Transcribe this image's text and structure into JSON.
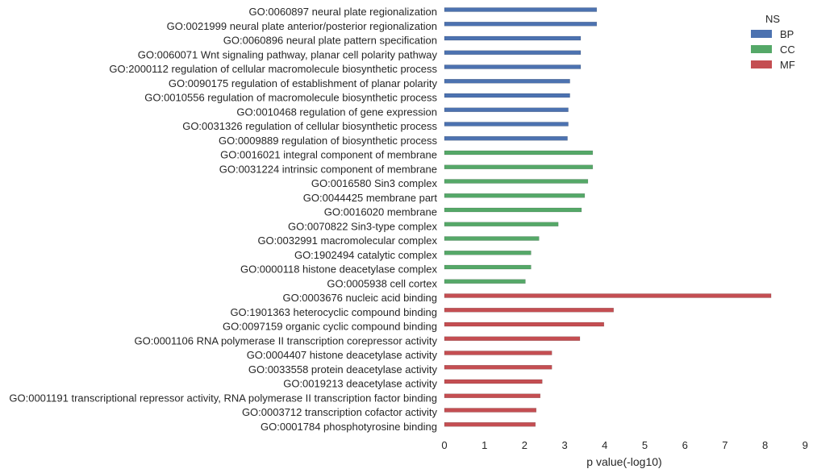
{
  "chart_data": {
    "type": "bar",
    "orientation": "horizontal",
    "title": "",
    "xlabel": "p value(-log10)",
    "ylabel": "",
    "xlim": [
      0,
      9
    ],
    "xticks": [
      0,
      1,
      2,
      3,
      4,
      5,
      6,
      7,
      8,
      9
    ],
    "grid": false,
    "legend": {
      "title": "NS",
      "placement": "top-right",
      "entries": [
        {
          "name": "BP",
          "color": "#4c72b0"
        },
        {
          "name": "CC",
          "color": "#55a868"
        },
        {
          "name": "MF",
          "color": "#c44e52"
        }
      ]
    },
    "categories": [
      {
        "label": "GO:0060897 neural plate regionalization",
        "group": "BP",
        "value": 3.8
      },
      {
        "label": "GO:0021999 neural plate anterior/posterior regionalization",
        "group": "BP",
        "value": 3.8
      },
      {
        "label": "GO:0060896 neural plate pattern specification",
        "group": "BP",
        "value": 3.4
      },
      {
        "label": "GO:0060071 Wnt signaling pathway, planar cell polarity pathway",
        "group": "BP",
        "value": 3.4
      },
      {
        "label": "GO:2000112 regulation of cellular macromolecule biosynthetic process",
        "group": "BP",
        "value": 3.4
      },
      {
        "label": "GO:0090175 regulation of establishment of planar polarity",
        "group": "BP",
        "value": 3.13
      },
      {
        "label": "GO:0010556 regulation of macromolecule biosynthetic process",
        "group": "BP",
        "value": 3.13
      },
      {
        "label": "GO:0010468 regulation of gene expression",
        "group": "BP",
        "value": 3.09
      },
      {
        "label": "GO:0031326 regulation of cellular biosynthetic process",
        "group": "BP",
        "value": 3.09
      },
      {
        "label": "GO:0009889 regulation of biosynthetic process",
        "group": "BP",
        "value": 3.07
      },
      {
        "label": "GO:0016021 integral component of membrane",
        "group": "CC",
        "value": 3.7
      },
      {
        "label": "GO:0031224 intrinsic component of membrane",
        "group": "CC",
        "value": 3.7
      },
      {
        "label": "GO:0016580 Sin3 complex",
        "group": "CC",
        "value": 3.58
      },
      {
        "label": "GO:0044425 membrane part",
        "group": "CC",
        "value": 3.5
      },
      {
        "label": "GO:0016020 membrane",
        "group": "CC",
        "value": 3.42
      },
      {
        "label": "GO:0070822 Sin3-type complex",
        "group": "CC",
        "value": 2.84
      },
      {
        "label": "GO:0032991 macromolecular complex",
        "group": "CC",
        "value": 2.36
      },
      {
        "label": "GO:1902494 catalytic complex",
        "group": "CC",
        "value": 2.16
      },
      {
        "label": "GO:0000118 histone deacetylase complex",
        "group": "CC",
        "value": 2.16
      },
      {
        "label": "GO:0005938 cell cortex",
        "group": "CC",
        "value": 2.02
      },
      {
        "label": "GO:0003676 nucleic acid binding",
        "group": "MF",
        "value": 8.15
      },
      {
        "label": "GO:1901363 heterocyclic compound binding",
        "group": "MF",
        "value": 4.22
      },
      {
        "label": "GO:0097159 organic cyclic compound binding",
        "group": "MF",
        "value": 3.98
      },
      {
        "label": "GO:0001106 RNA polymerase II transcription corepressor activity",
        "group": "MF",
        "value": 3.38
      },
      {
        "label": "GO:0004407 histone deacetylase activity",
        "group": "MF",
        "value": 2.68
      },
      {
        "label": "GO:0033558 protein deacetylase activity",
        "group": "MF",
        "value": 2.68
      },
      {
        "label": "GO:0019213 deacetylase activity",
        "group": "MF",
        "value": 2.44
      },
      {
        "label": "GO:0001191 transcriptional repressor activity, RNA polymerase II transcription factor binding",
        "group": "MF",
        "value": 2.39
      },
      {
        "label": "GO:0003712 transcription cofactor activity",
        "group": "MF",
        "value": 2.29
      },
      {
        "label": "GO:0001784 phosphotyrosine binding",
        "group": "MF",
        "value": 2.27
      }
    ]
  }
}
